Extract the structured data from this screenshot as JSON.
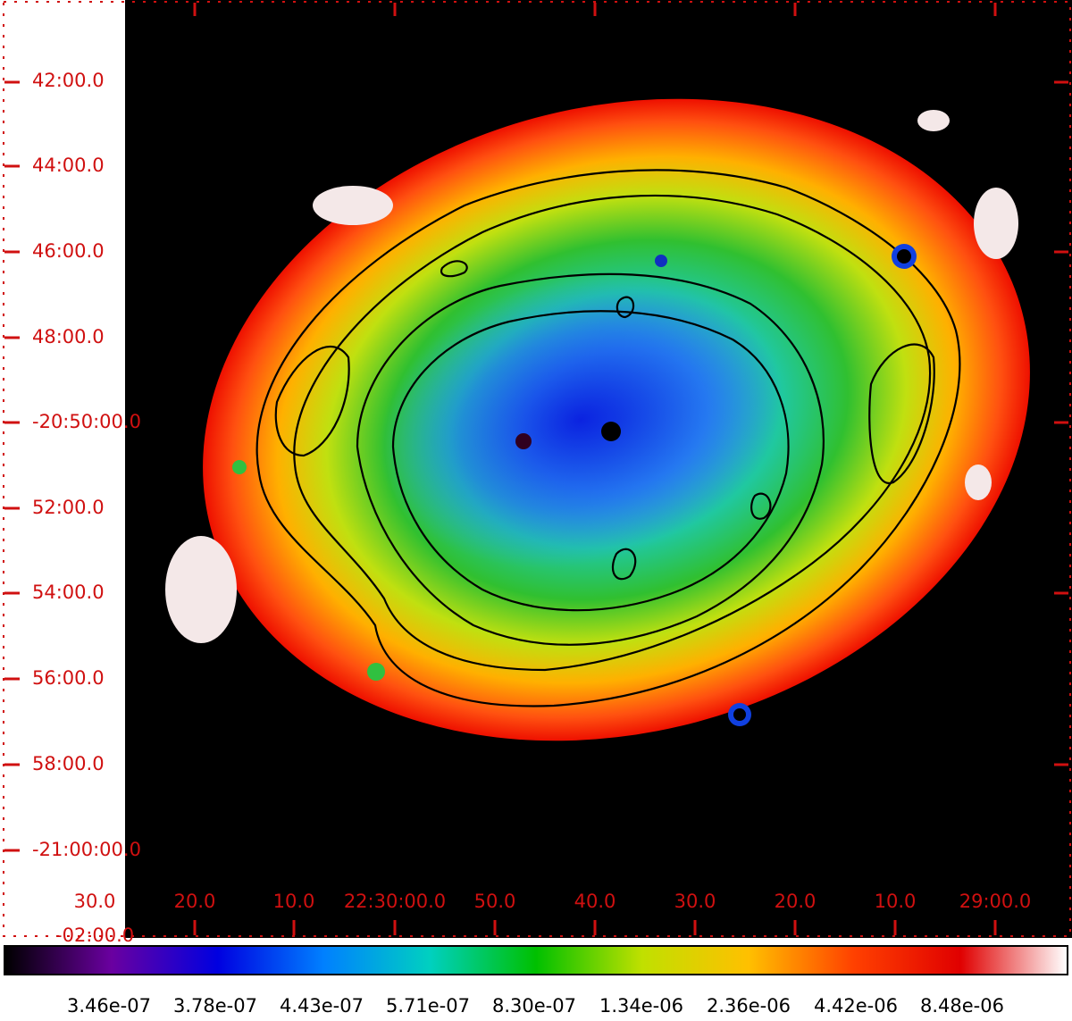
{
  "image": {
    "description_icon": "nebula-image",
    "background_color": "#000000",
    "tick_color": "#d01010"
  },
  "axes": {
    "dec_labels": [
      "42:00.0",
      "44:00.0",
      "46:00.0",
      "48:00.0",
      "-20:50:00.0",
      "52:00.0",
      "54:00.0",
      "56:00.0",
      "58:00.0",
      "-21:00:00.0"
    ],
    "ra_labels": [
      "30.0",
      "20.0",
      "10.0",
      "22:30:00.0",
      "50.0",
      "40.0",
      "30.0",
      "20.0",
      "10.0",
      "29:00.0"
    ],
    "ra_partial_label": "-02:00.0"
  },
  "colorbar": {
    "labels": [
      "3.46e-07",
      "3.78e-07",
      "4.43e-07",
      "5.71e-07",
      "8.30e-07",
      "1.34e-06",
      "2.36e-06",
      "4.42e-06",
      "8.48e-06"
    ],
    "gradient_colors": [
      "#000000",
      "#6a00a0",
      "#0000e0",
      "#0080ff",
      "#00d0c0",
      "#00c000",
      "#c0e000",
      "#ffc000",
      "#ff4000",
      "#e00000",
      "#ffffff"
    ]
  }
}
